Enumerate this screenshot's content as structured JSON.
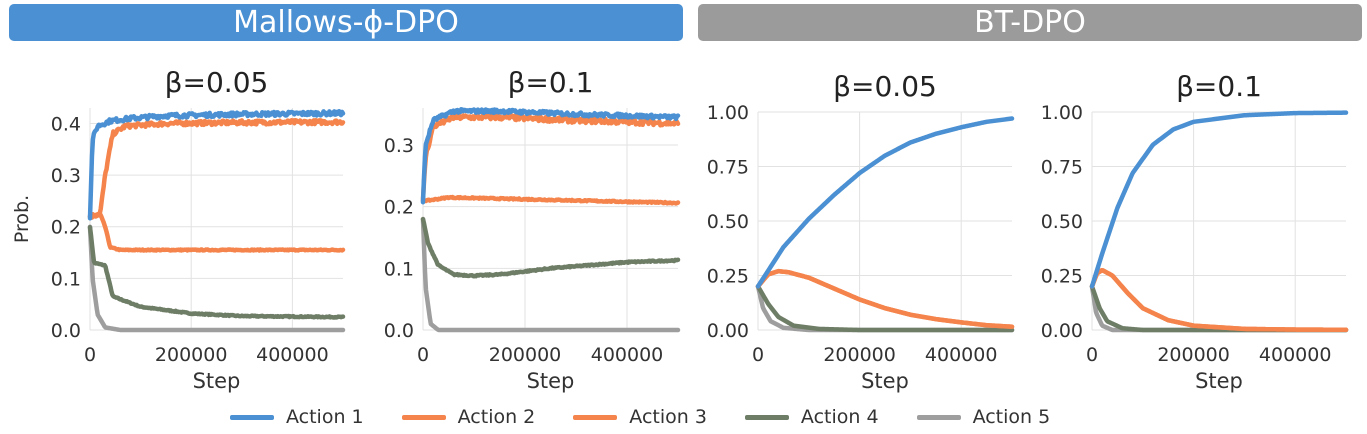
{
  "banners": {
    "left": "Mallows-ϕ-DPO",
    "right": "BT-DPO"
  },
  "colors": {
    "Action 1": "#4a90d2",
    "Action 2": "#f4844c",
    "Action 3": "#f4844c",
    "Action 4": "#6e7d66",
    "Action 5": "#9e9e9e"
  },
  "legend": [
    "Action 1",
    "Action 2",
    "Action 3",
    "Action 4",
    "Action 5"
  ],
  "chart_data": [
    {
      "type": "line",
      "group": "Mallows-ϕ-DPO",
      "title": "β=0.05",
      "xlabel": "Step",
      "ylabel": "Prob.",
      "xlim": [
        0,
        500000
      ],
      "ylim": [
        0,
        0.43
      ],
      "xticks": [
        0,
        200000,
        400000
      ],
      "yticks": [
        0.0,
        0.1,
        0.2,
        0.3,
        0.4
      ],
      "ytick_labels": [
        "0.0",
        "0.1",
        "0.2",
        "0.3",
        "0.4"
      ],
      "grid": true,
      "series": [
        {
          "name": "Action 1",
          "noise": 0.004,
          "points": [
            [
              0,
              0.22
            ],
            [
              5000,
              0.37
            ],
            [
              15000,
              0.395
            ],
            [
              40000,
              0.405
            ],
            [
              80000,
              0.41
            ],
            [
              150000,
              0.415
            ],
            [
              300000,
              0.418
            ],
            [
              500000,
              0.42
            ]
          ]
        },
        {
          "name": "Action 2",
          "noise": 0.004,
          "points": [
            [
              0,
              0.22
            ],
            [
              20000,
              0.225
            ],
            [
              30000,
              0.3
            ],
            [
              45000,
              0.38
            ],
            [
              70000,
              0.395
            ],
            [
              150000,
              0.4
            ],
            [
              300000,
              0.402
            ],
            [
              500000,
              0.403
            ]
          ]
        },
        {
          "name": "Action 3",
          "noise": 0.001,
          "points": [
            [
              0,
              0.22
            ],
            [
              20000,
              0.225
            ],
            [
              30000,
              0.2
            ],
            [
              40000,
              0.16
            ],
            [
              60000,
              0.155
            ],
            [
              200000,
              0.155
            ],
            [
              500000,
              0.155
            ]
          ]
        },
        {
          "name": "Action 4",
          "noise": 0.001,
          "points": [
            [
              0,
              0.2
            ],
            [
              8000,
              0.13
            ],
            [
              30000,
              0.125
            ],
            [
              45000,
              0.065
            ],
            [
              100000,
              0.045
            ],
            [
              200000,
              0.032
            ],
            [
              300000,
              0.027
            ],
            [
              500000,
              0.025
            ]
          ]
        },
        {
          "name": "Action 5",
          "noise": 0.0,
          "points": [
            [
              0,
              0.2
            ],
            [
              5000,
              0.1
            ],
            [
              15000,
              0.03
            ],
            [
              30000,
              0.005
            ],
            [
              60000,
              0.0
            ],
            [
              500000,
              0.0
            ]
          ]
        }
      ]
    },
    {
      "type": "line",
      "group": "Mallows-ϕ-DPO",
      "title": "β=0.1",
      "xlabel": "Step",
      "ylabel": "",
      "xlim": [
        0,
        500000
      ],
      "ylim": [
        0,
        0.36
      ],
      "xticks": [
        0,
        200000,
        400000
      ],
      "yticks": [
        0.0,
        0.1,
        0.2,
        0.3
      ],
      "ytick_labels": [
        "0.0",
        "0.1",
        "0.2",
        "0.3"
      ],
      "grid": true,
      "series": [
        {
          "name": "Action 1",
          "noise": 0.003,
          "points": [
            [
              0,
              0.21
            ],
            [
              5000,
              0.3
            ],
            [
              20000,
              0.34
            ],
            [
              60000,
              0.355
            ],
            [
              150000,
              0.355
            ],
            [
              300000,
              0.35
            ],
            [
              500000,
              0.345
            ]
          ]
        },
        {
          "name": "Action 2",
          "noise": 0.004,
          "points": [
            [
              0,
              0.21
            ],
            [
              5000,
              0.28
            ],
            [
              20000,
              0.33
            ],
            [
              60000,
              0.345
            ],
            [
              150000,
              0.345
            ],
            [
              300000,
              0.34
            ],
            [
              500000,
              0.335
            ]
          ]
        },
        {
          "name": "Action 3",
          "noise": 0.001,
          "points": [
            [
              0,
              0.21
            ],
            [
              10000,
              0.21
            ],
            [
              50000,
              0.215
            ],
            [
              200000,
              0.212
            ],
            [
              500000,
              0.206
            ]
          ]
        },
        {
          "name": "Action 4",
          "noise": 0.001,
          "points": [
            [
              0,
              0.18
            ],
            [
              10000,
              0.14
            ],
            [
              30000,
              0.105
            ],
            [
              60000,
              0.09
            ],
            [
              100000,
              0.088
            ],
            [
              150000,
              0.09
            ],
            [
              250000,
              0.1
            ],
            [
              400000,
              0.11
            ],
            [
              500000,
              0.113
            ]
          ]
        },
        {
          "name": "Action 5",
          "noise": 0.0,
          "points": [
            [
              0,
              0.18
            ],
            [
              5000,
              0.07
            ],
            [
              15000,
              0.01
            ],
            [
              30000,
              0.0
            ],
            [
              500000,
              0.0
            ]
          ]
        }
      ]
    },
    {
      "type": "line",
      "group": "BT-DPO",
      "title": "β=0.05",
      "xlabel": "Step",
      "ylabel": "",
      "xlim": [
        0,
        500000
      ],
      "ylim": [
        0,
        1.0
      ],
      "xticks": [
        0,
        200000,
        400000
      ],
      "yticks": [
        0.0,
        0.25,
        0.5,
        0.75,
        1.0
      ],
      "ytick_labels": [
        "0.00",
        "0.25",
        "0.50",
        "0.75",
        "1.00"
      ],
      "grid": true,
      "series": [
        {
          "name": "Action 1",
          "noise": 0.0,
          "points": [
            [
              0,
              0.2
            ],
            [
              50000,
              0.38
            ],
            [
              100000,
              0.51
            ],
            [
              150000,
              0.62
            ],
            [
              200000,
              0.72
            ],
            [
              250000,
              0.8
            ],
            [
              300000,
              0.86
            ],
            [
              350000,
              0.9
            ],
            [
              400000,
              0.93
            ],
            [
              450000,
              0.955
            ],
            [
              500000,
              0.97
            ]
          ]
        },
        {
          "name": "Action 2",
          "noise": 0.0,
          "points": [
            [
              0,
              0.2
            ],
            [
              20000,
              0.255
            ],
            [
              40000,
              0.27
            ],
            [
              60000,
              0.265
            ],
            [
              100000,
              0.24
            ],
            [
              150000,
              0.19
            ],
            [
              200000,
              0.14
            ],
            [
              250000,
              0.1
            ],
            [
              300000,
              0.07
            ],
            [
              350000,
              0.05
            ],
            [
              400000,
              0.035
            ],
            [
              450000,
              0.022
            ],
            [
              500000,
              0.015
            ]
          ]
        },
        {
          "name": "Action 3",
          "noise": 0.0,
          "points": [
            [
              0,
              0.2
            ],
            [
              20000,
              0.255
            ],
            [
              40000,
              0.27
            ],
            [
              60000,
              0.265
            ],
            [
              100000,
              0.24
            ],
            [
              150000,
              0.19
            ],
            [
              200000,
              0.14
            ],
            [
              250000,
              0.1
            ],
            [
              300000,
              0.07
            ],
            [
              350000,
              0.05
            ],
            [
              400000,
              0.035
            ],
            [
              450000,
              0.022
            ],
            [
              500000,
              0.015
            ]
          ]
        },
        {
          "name": "Action 4",
          "noise": 0.0,
          "points": [
            [
              0,
              0.2
            ],
            [
              20000,
              0.12
            ],
            [
              40000,
              0.06
            ],
            [
              70000,
              0.02
            ],
            [
              120000,
              0.005
            ],
            [
              200000,
              0.0
            ],
            [
              500000,
              0.0
            ]
          ]
        },
        {
          "name": "Action 5",
          "noise": 0.0,
          "points": [
            [
              0,
              0.2
            ],
            [
              10000,
              0.1
            ],
            [
              25000,
              0.04
            ],
            [
              50000,
              0.01
            ],
            [
              100000,
              0.0
            ],
            [
              500000,
              0.0
            ]
          ]
        }
      ]
    },
    {
      "type": "line",
      "group": "BT-DPO",
      "title": "β=0.1",
      "xlabel": "Step",
      "ylabel": "",
      "xlim": [
        0,
        500000
      ],
      "ylim": [
        0,
        1.0
      ],
      "xticks": [
        0,
        200000,
        400000
      ],
      "yticks": [
        0.0,
        0.25,
        0.5,
        0.75,
        1.0
      ],
      "ytick_labels": [
        "0.00",
        "0.25",
        "0.50",
        "0.75",
        "1.00"
      ],
      "grid": true,
      "series": [
        {
          "name": "Action 1",
          "noise": 0.0,
          "points": [
            [
              0,
              0.2
            ],
            [
              20000,
              0.35
            ],
            [
              50000,
              0.56
            ],
            [
              80000,
              0.72
            ],
            [
              120000,
              0.85
            ],
            [
              160000,
              0.92
            ],
            [
              200000,
              0.955
            ],
            [
              300000,
              0.985
            ],
            [
              400000,
              0.995
            ],
            [
              500000,
              0.997
            ]
          ]
        },
        {
          "name": "Action 2",
          "noise": 0.0,
          "points": [
            [
              0,
              0.2
            ],
            [
              10000,
              0.26
            ],
            [
              20000,
              0.275
            ],
            [
              40000,
              0.25
            ],
            [
              70000,
              0.17
            ],
            [
              100000,
              0.1
            ],
            [
              150000,
              0.045
            ],
            [
              200000,
              0.02
            ],
            [
              300000,
              0.005
            ],
            [
              400000,
              0.002
            ],
            [
              500000,
              0.001
            ]
          ]
        },
        {
          "name": "Action 3",
          "noise": 0.0,
          "points": [
            [
              0,
              0.2
            ],
            [
              10000,
              0.26
            ],
            [
              20000,
              0.275
            ],
            [
              40000,
              0.25
            ],
            [
              70000,
              0.17
            ],
            [
              100000,
              0.1
            ],
            [
              150000,
              0.045
            ],
            [
              200000,
              0.02
            ],
            [
              300000,
              0.005
            ],
            [
              400000,
              0.002
            ],
            [
              500000,
              0.001
            ]
          ]
        },
        {
          "name": "Action 4",
          "noise": 0.0,
          "points": [
            [
              0,
              0.2
            ],
            [
              15000,
              0.1
            ],
            [
              30000,
              0.04
            ],
            [
              60000,
              0.008
            ],
            [
              100000,
              0.0
            ],
            [
              500000,
              0.0
            ]
          ]
        },
        {
          "name": "Action 5",
          "noise": 0.0,
          "points": [
            [
              0,
              0.2
            ],
            [
              8000,
              0.08
            ],
            [
              20000,
              0.02
            ],
            [
              40000,
              0.0
            ],
            [
              500000,
              0.0
            ]
          ]
        }
      ]
    }
  ]
}
